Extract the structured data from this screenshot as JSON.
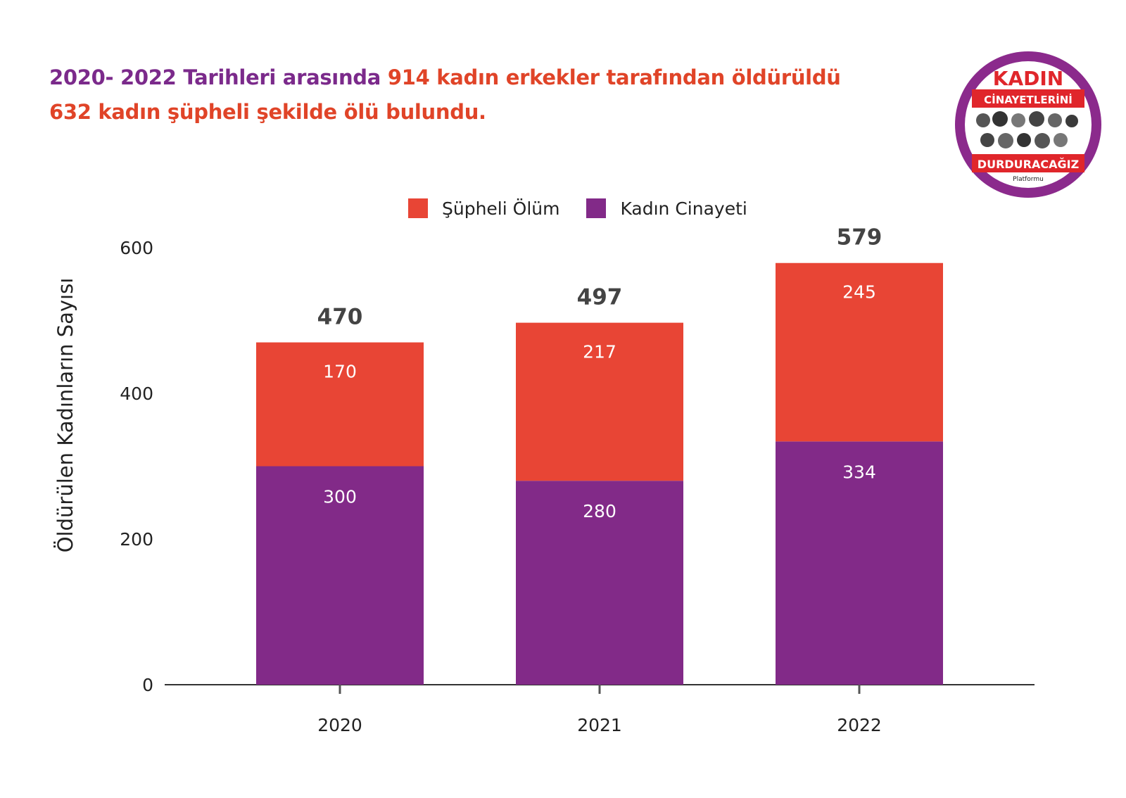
{
  "headline": {
    "part1": "2020- 2022 Tarihleri arasında ",
    "part2": "914 kadın erkekler tarafından öldürüldü",
    "line2": "632 kadın şüpheli şekilde ölü bulundu."
  },
  "logo": {
    "line1": "KADIN",
    "line2": "CİNAYETLERİNİ",
    "line3": "DURDURACAĞIZ",
    "line4": "Platformu"
  },
  "colors": {
    "kadin_cinayeti": "#822a88",
    "supheli_olum": "#e84535",
    "title_purple": "#7b2a8b",
    "title_red": "#e04428"
  },
  "legend": {
    "supheli": "Şüpheli Ölüm",
    "kadin": "Kadın Cinayeti"
  },
  "chart_data": {
    "type": "bar",
    "stacked": true,
    "categories": [
      "2020",
      "2021",
      "2022"
    ],
    "series": [
      {
        "name": "Kadın Cinayeti",
        "values": [
          300,
          280,
          334
        ]
      },
      {
        "name": "Şüpheli Ölüm",
        "values": [
          170,
          217,
          245
        ]
      }
    ],
    "totals": [
      470,
      497,
      579
    ],
    "ylabel": "Öldürülen Kadınların Sayısı",
    "xlabel": "",
    "ylim": [
      0,
      600
    ],
    "yticks": [
      0,
      200,
      400,
      600
    ],
    "grid": false,
    "legend_position": "top"
  }
}
